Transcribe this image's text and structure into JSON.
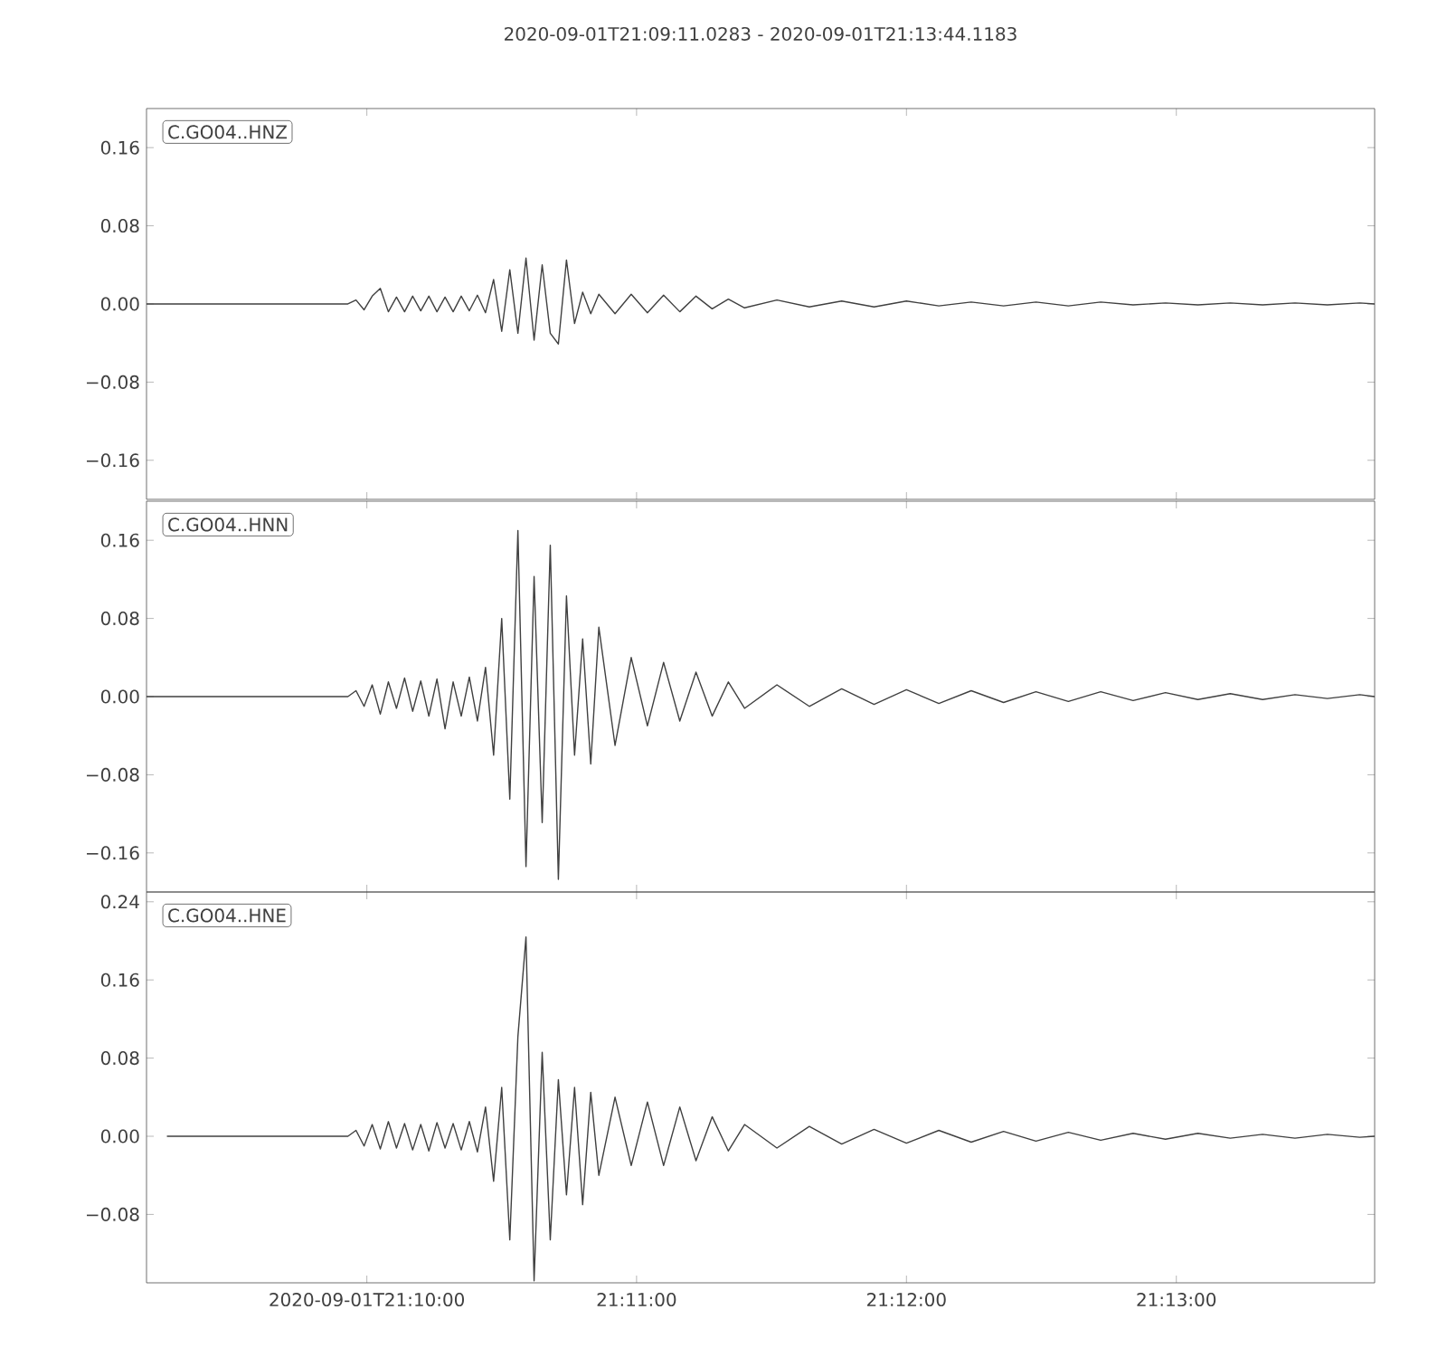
{
  "chart_data": [
    {
      "type": "line",
      "title": "2020-09-01T21:09:11.0283  -  2020-09-01T21:13:44.1183",
      "annotations": [
        "C.GO04..HNZ"
      ],
      "color": "#404040",
      "tick_labels": "y",
      "xlim": [
        21.15306,
        21.22892
      ],
      "ylim": [
        -0.2,
        0.2
      ],
      "xticks": [
        {
          "value": 21.16667,
          "label": null
        },
        {
          "value": 21.18333,
          "label": null
        },
        {
          "value": 21.2,
          "label": null
        },
        {
          "value": 21.21667,
          "label": null
        }
      ],
      "yticks": [
        {
          "value": -0.16,
          "label": "−0.16"
        },
        {
          "value": -0.08,
          "label": "−0.08"
        },
        {
          "value": 0,
          "label": "0.00"
        },
        {
          "value": 0.08,
          "label": "0.08"
        },
        {
          "value": 0.16,
          "label": "0.16"
        }
      ],
      "x": [
        21.15306,
        21.1655,
        21.166,
        21.1665,
        21.167,
        21.1675,
        21.168,
        21.1685,
        21.169,
        21.1695,
        21.17,
        21.1705,
        21.171,
        21.1715,
        21.172,
        21.1725,
        21.173,
        21.1735,
        21.174,
        21.1745,
        21.175,
        21.1755,
        21.176,
        21.1765,
        21.177,
        21.1775,
        21.178,
        21.1785,
        21.179,
        21.1795,
        21.18,
        21.1805,
        21.181,
        21.182,
        21.183,
        21.184,
        21.185,
        21.186,
        21.187,
        21.188,
        21.189,
        21.19,
        21.192,
        21.194,
        21.196,
        21.198,
        21.2,
        21.202,
        21.204,
        21.206,
        21.208,
        21.21,
        21.212,
        21.214,
        21.216,
        21.218,
        21.22,
        21.222,
        21.224,
        21.226,
        21.228,
        21.22892
      ],
      "values": [
        0,
        0,
        0.004,
        -0.006,
        0.008,
        0.016,
        -0.008,
        0.007,
        -0.008,
        0.008,
        -0.007,
        0.008,
        -0.008,
        0.007,
        -0.008,
        0.008,
        -0.007,
        0.009,
        -0.009,
        0.025,
        -0.028,
        0.035,
        -0.03,
        0.047,
        -0.037,
        0.04,
        -0.03,
        -0.041,
        0.045,
        -0.02,
        0.012,
        -0.01,
        0.01,
        -0.01,
        0.01,
        -0.009,
        0.009,
        -0.008,
        0.008,
        -0.005,
        0.005,
        -0.004,
        0.004,
        -0.003,
        0.003,
        -0.003,
        0.003,
        -0.002,
        0.002,
        -0.002,
        0.002,
        -0.002,
        0.002,
        -0.001,
        0.001,
        -0.001,
        0.001,
        -0.001,
        0.001,
        -0.001,
        0.001,
        0
      ]
    },
    {
      "type": "line",
      "annotations": [
        "C.GO04..HNN"
      ],
      "color": "#404040",
      "tick_labels": "y",
      "xlim": [
        21.15306,
        21.22892
      ],
      "ylim": [
        -0.2,
        0.2
      ],
      "xticks": [
        {
          "value": 21.16667,
          "label": null
        },
        {
          "value": 21.18333,
          "label": null
        },
        {
          "value": 21.2,
          "label": null
        },
        {
          "value": 21.21667,
          "label": null
        }
      ],
      "yticks": [
        {
          "value": -0.16,
          "label": "−0.16"
        },
        {
          "value": -0.08,
          "label": "−0.08"
        },
        {
          "value": 0,
          "label": "0.00"
        },
        {
          "value": 0.08,
          "label": "0.08"
        },
        {
          "value": 0.16,
          "label": "0.16"
        }
      ],
      "x": [
        21.15306,
        21.1655,
        21.166,
        21.1665,
        21.167,
        21.1675,
        21.168,
        21.1685,
        21.169,
        21.1695,
        21.17,
        21.1705,
        21.171,
        21.1715,
        21.172,
        21.1725,
        21.173,
        21.1735,
        21.174,
        21.1745,
        21.175,
        21.1755,
        21.176,
        21.1765,
        21.177,
        21.1775,
        21.178,
        21.1785,
        21.179,
        21.1795,
        21.18,
        21.1805,
        21.181,
        21.182,
        21.183,
        21.184,
        21.185,
        21.186,
        21.187,
        21.188,
        21.189,
        21.19,
        21.192,
        21.194,
        21.196,
        21.198,
        21.2,
        21.202,
        21.204,
        21.206,
        21.208,
        21.21,
        21.212,
        21.214,
        21.216,
        21.218,
        21.22,
        21.222,
        21.224,
        21.226,
        21.228,
        21.22892
      ],
      "values": [
        0,
        0,
        0.006,
        -0.01,
        0.012,
        -0.018,
        0.015,
        -0.012,
        0.019,
        -0.015,
        0.016,
        -0.02,
        0.018,
        -0.033,
        0.015,
        -0.02,
        0.02,
        -0.025,
        0.03,
        -0.06,
        0.08,
        -0.105,
        0.17,
        -0.174,
        0.123,
        -0.129,
        0.155,
        -0.187,
        0.103,
        -0.06,
        0.059,
        -0.069,
        0.071,
        -0.05,
        0.04,
        -0.03,
        0.035,
        -0.025,
        0.025,
        -0.02,
        0.015,
        -0.012,
        0.012,
        -0.01,
        0.008,
        -0.008,
        0.007,
        -0.007,
        0.006,
        -0.006,
        0.005,
        -0.005,
        0.005,
        -0.004,
        0.004,
        -0.003,
        0.003,
        -0.003,
        0.002,
        -0.002,
        0.002,
        0
      ]
    },
    {
      "type": "line",
      "annotations": [
        "C.GO04..HNE"
      ],
      "color": "#404040",
      "xlim": [
        21.15306,
        21.22892
      ],
      "ylim": [
        -0.15,
        0.25
      ],
      "xticks": [
        {
          "value": 21.16667,
          "label": "2020-09-01T21:10:00"
        },
        {
          "value": 21.18333,
          "label": "21:11:00"
        },
        {
          "value": 21.2,
          "label": "21:12:00"
        },
        {
          "value": 21.21667,
          "label": "21:13:00"
        }
      ],
      "yticks": [
        {
          "value": -0.08,
          "label": "−0.08"
        },
        {
          "value": 0,
          "label": "0.00"
        },
        {
          "value": 0.08,
          "label": "0.08"
        },
        {
          "value": 0.16,
          "label": "0.16"
        },
        {
          "value": 0.24,
          "label": "0.24"
        }
      ],
      "x": [
        21.15432,
        21.1655,
        21.166,
        21.1665,
        21.167,
        21.1675,
        21.168,
        21.1685,
        21.169,
        21.1695,
        21.17,
        21.1705,
        21.171,
        21.1715,
        21.172,
        21.1725,
        21.173,
        21.1735,
        21.174,
        21.1745,
        21.175,
        21.1755,
        21.176,
        21.1765,
        21.177,
        21.1775,
        21.178,
        21.1785,
        21.179,
        21.1795,
        21.18,
        21.1805,
        21.181,
        21.182,
        21.183,
        21.184,
        21.185,
        21.186,
        21.187,
        21.188,
        21.189,
        21.19,
        21.192,
        21.194,
        21.196,
        21.198,
        21.2,
        21.202,
        21.204,
        21.206,
        21.208,
        21.21,
        21.212,
        21.214,
        21.216,
        21.218,
        21.22,
        21.222,
        21.224,
        21.226,
        21.228,
        21.22892
      ],
      "values": [
        0,
        0,
        0.006,
        -0.01,
        0.012,
        -0.013,
        0.015,
        -0.012,
        0.013,
        -0.014,
        0.012,
        -0.015,
        0.014,
        -0.012,
        0.013,
        -0.014,
        0.015,
        -0.016,
        0.03,
        -0.046,
        0.05,
        -0.106,
        0.102,
        0.204,
        -0.148,
        0.086,
        -0.106,
        0.058,
        -0.06,
        0.05,
        -0.07,
        0.045,
        -0.04,
        0.04,
        -0.03,
        0.035,
        -0.03,
        0.03,
        -0.025,
        0.02,
        -0.015,
        0.012,
        -0.012,
        0.01,
        -0.008,
        0.007,
        -0.007,
        0.006,
        -0.006,
        0.005,
        -0.005,
        0.004,
        -0.004,
        0.003,
        -0.003,
        0.003,
        -0.002,
        0.002,
        -0.002,
        0.002,
        -0.001,
        0
      ]
    }
  ]
}
